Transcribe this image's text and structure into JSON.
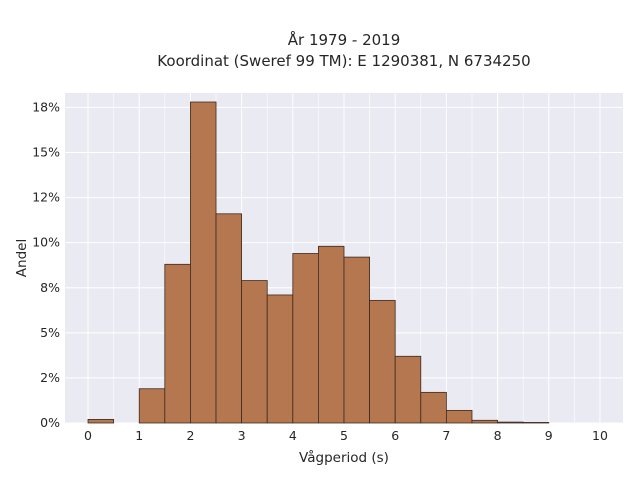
{
  "chart_data": {
    "type": "bar",
    "title": [
      "År 1979 - 2019",
      "Koordinat (Sweref 99 TM): E 1290381, N 6734250"
    ],
    "xlabel": "Vågperiod (s)",
    "ylabel": "Andel",
    "bin_width": 0.5,
    "bin_starts": [
      0,
      0.5,
      1,
      1.5,
      2,
      2.5,
      3,
      3.5,
      4,
      4.5,
      5,
      5.5,
      6,
      6.5,
      7,
      7.5,
      8,
      8.5,
      9,
      9.5
    ],
    "values": [
      0.002,
      0.0,
      0.019,
      0.088,
      0.178,
      0.116,
      0.079,
      0.071,
      0.094,
      0.098,
      0.092,
      0.068,
      0.037,
      0.017,
      0.007,
      0.0015,
      0.0005,
      0.0003,
      0.0,
      0.0
    ],
    "xlim": [
      -0.45,
      10.45
    ],
    "ylim": [
      0,
      0.183
    ],
    "xticks": [
      0,
      1,
      2,
      3,
      4,
      5,
      6,
      7,
      8,
      9,
      10
    ],
    "xtick_labels": [
      "0",
      "1",
      "2",
      "3",
      "4",
      "5",
      "6",
      "7",
      "8",
      "9",
      "10"
    ],
    "yticks": [
      0,
      0.025,
      0.05,
      0.075,
      0.1,
      0.125,
      0.15,
      0.175
    ],
    "ytick_labels": [
      "0%",
      "2%",
      "5%",
      "8%",
      "10%",
      "12%",
      "15%",
      "18%"
    ],
    "grid": true,
    "legend": "none",
    "colors": {
      "bar_fill": "#b5774f",
      "bar_edge": "#3d2a1e",
      "plot_background": "#eaeaf2",
      "grid": "#ffffff"
    }
  }
}
